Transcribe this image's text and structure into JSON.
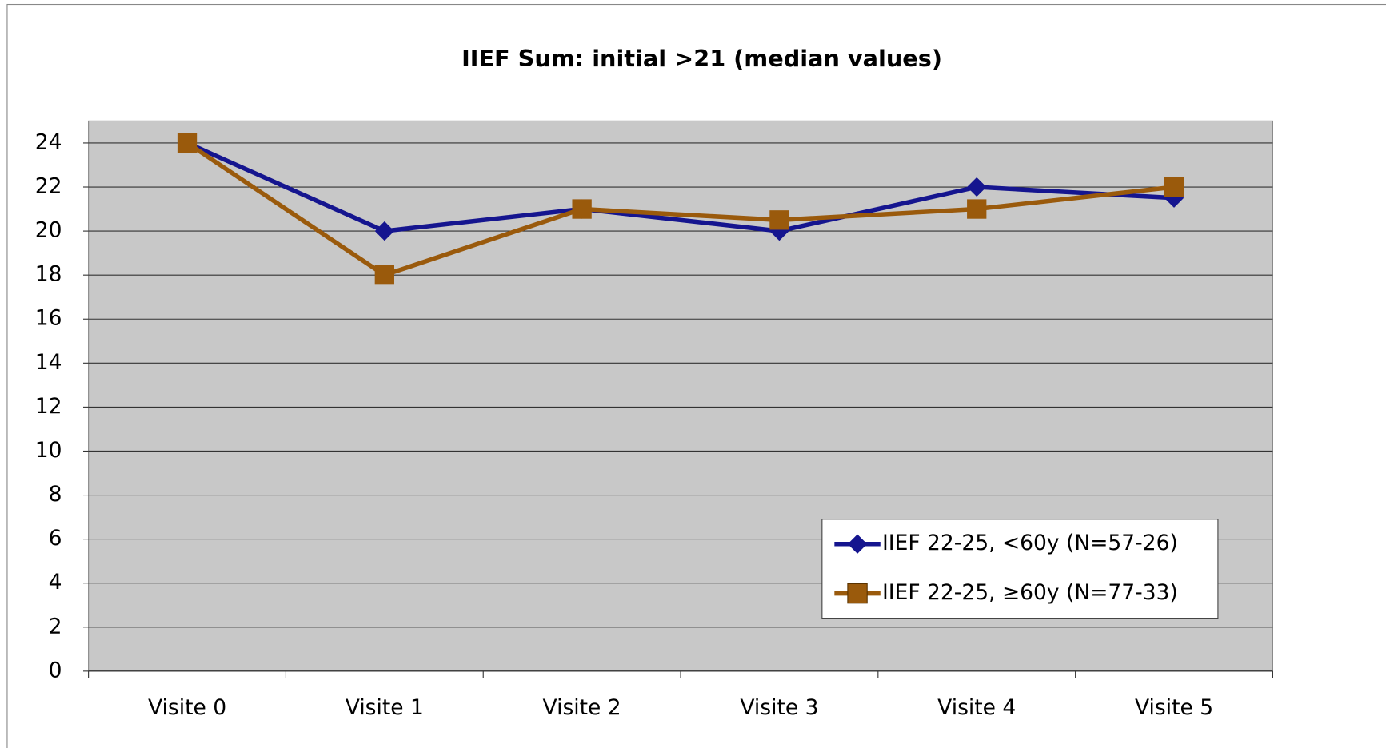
{
  "chart_data": {
    "type": "line",
    "title": "IIEF Sum:  initial >21 (median values)",
    "categories": [
      "Visite 0",
      "Visite 1",
      "Visite 2",
      "Visite 3",
      "Visite 4",
      "Visite 5"
    ],
    "series": [
      {
        "name": "IIEF 22-25, <60y (N=57-26)",
        "color": "#15158f",
        "marker": "diamond",
        "values": [
          24,
          20,
          21,
          20,
          22,
          21.5
        ]
      },
      {
        "name": "IIEF 22-25, ≥60y (N=77-33)",
        "color": "#9a5a0c",
        "marker": "square",
        "values": [
          24,
          18,
          21,
          20.5,
          21,
          22
        ]
      }
    ],
    "ylim": [
      0,
      25
    ],
    "yticks": [
      0,
      2,
      4,
      6,
      8,
      10,
      12,
      14,
      16,
      18,
      20,
      22,
      24
    ],
    "grid": true
  }
}
